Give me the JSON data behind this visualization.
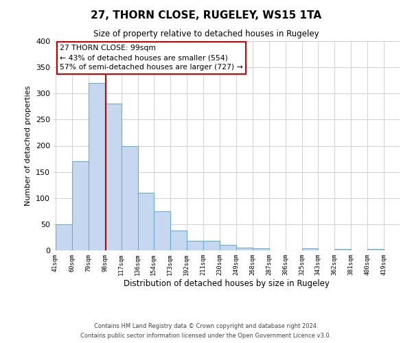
{
  "title": "27, THORN CLOSE, RUGELEY, WS15 1TA",
  "subtitle": "Size of property relative to detached houses in Rugeley",
  "xlabel": "Distribution of detached houses by size in Rugeley",
  "ylabel": "Number of detached properties",
  "bar_values": [
    50,
    170,
    320,
    280,
    200,
    110,
    75,
    38,
    18,
    18,
    10,
    5,
    4,
    0,
    0,
    4,
    0,
    2,
    0,
    2
  ],
  "bin_edges": [
    41,
    60,
    79,
    98,
    117,
    136,
    154,
    173,
    192,
    211,
    230,
    249,
    268,
    287,
    306,
    325,
    343,
    362,
    381,
    400,
    419
  ],
  "bin_labels": [
    "41sqm",
    "60sqm",
    "79sqm",
    "98sqm",
    "117sqm",
    "136sqm",
    "154sqm",
    "173sqm",
    "192sqm",
    "211sqm",
    "230sqm",
    "249sqm",
    "268sqm",
    "287sqm",
    "306sqm",
    "325sqm",
    "343sqm",
    "362sqm",
    "381sqm",
    "400sqm",
    "419sqm"
  ],
  "bar_color": "#c5d8f0",
  "bar_edgecolor": "#6aaad4",
  "property_size": 99,
  "vline_color": "#cc0000",
  "annotation_line1": "27 THORN CLOSE: 99sqm",
  "annotation_line2": "← 43% of detached houses are smaller (554)",
  "annotation_line3": "57% of semi-detached houses are larger (727) →",
  "annotation_box_edgecolor": "#cc0000",
  "ylim": [
    0,
    400
  ],
  "yticks": [
    0,
    50,
    100,
    150,
    200,
    250,
    300,
    350,
    400
  ],
  "footer_line1": "Contains HM Land Registry data © Crown copyright and database right 2024.",
  "footer_line2": "Contains public sector information licensed under the Open Government Licence v3.0.",
  "background_color": "#ffffff",
  "grid_color": "#d0d0d0"
}
